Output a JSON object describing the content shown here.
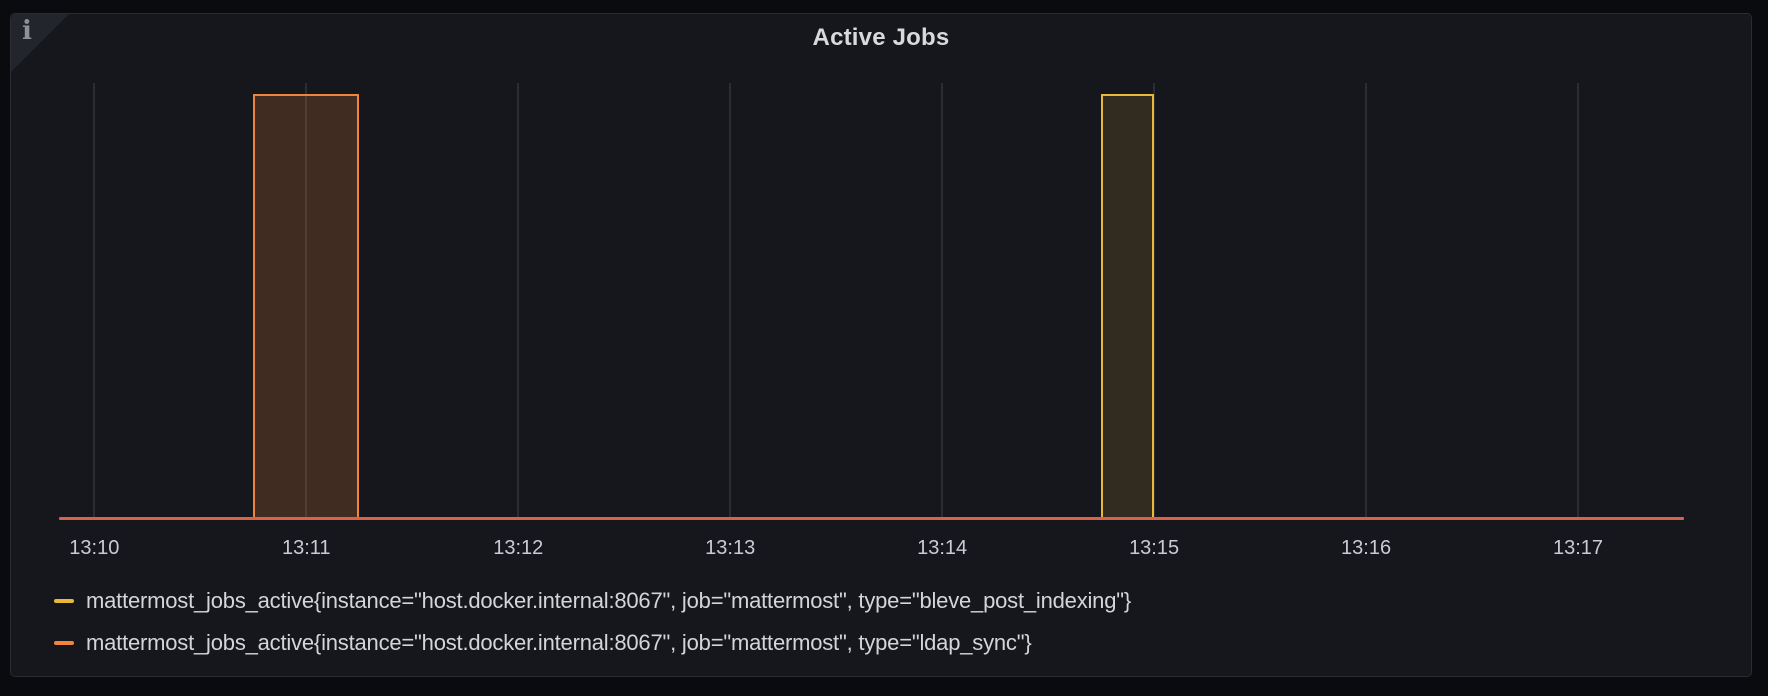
{
  "panel": {
    "title": "Active Jobs",
    "info_indicator": "i"
  },
  "colors": {
    "page_bg": "#0a0b0e",
    "panel_bg": "#16171c",
    "panel_border": "#2a2c32",
    "title_text": "#d8d9da",
    "axis_text": "#c9ccd4",
    "legend_text": "#d3d5da",
    "gridline": "rgba(204,204,220,0.12)",
    "series_yellow": "#EAB839",
    "series_orange": "#EF843C",
    "zero_line": "#D9624A"
  },
  "chart_data": {
    "type": "bar",
    "title": "Active Jobs",
    "x_axis": {
      "ticks": [
        "13:10",
        "13:11",
        "13:12",
        "13:13",
        "13:14",
        "13:15",
        "13:16",
        "13:17"
      ],
      "range_start": "13:09:50",
      "range_end": "13:17:30",
      "grid": true
    },
    "y_axis": {
      "min": 0,
      "max": 1,
      "labels_visible": false
    },
    "series": [
      {
        "name": "mattermost_jobs_active{instance=\"host.docker.internal:8067\", job=\"mattermost\", type=\"bleve_post_indexing\"}",
        "color": "#EAB839",
        "fill_opacity": 0.13,
        "baseline_value": 0,
        "bars": [
          {
            "start": "13:14:45",
            "end": "13:15:00",
            "value": 1
          }
        ]
      },
      {
        "name": "mattermost_jobs_active{instance=\"host.docker.internal:8067\", job=\"mattermost\", type=\"ldap_sync\"}",
        "color": "#EF843C",
        "fill_opacity": 0.2,
        "baseline_value": 0,
        "bars": [
          {
            "start": "13:10:45",
            "end": "13:11:15",
            "value": 1
          }
        ]
      }
    ],
    "legend": {
      "position": "bottom-left"
    }
  }
}
